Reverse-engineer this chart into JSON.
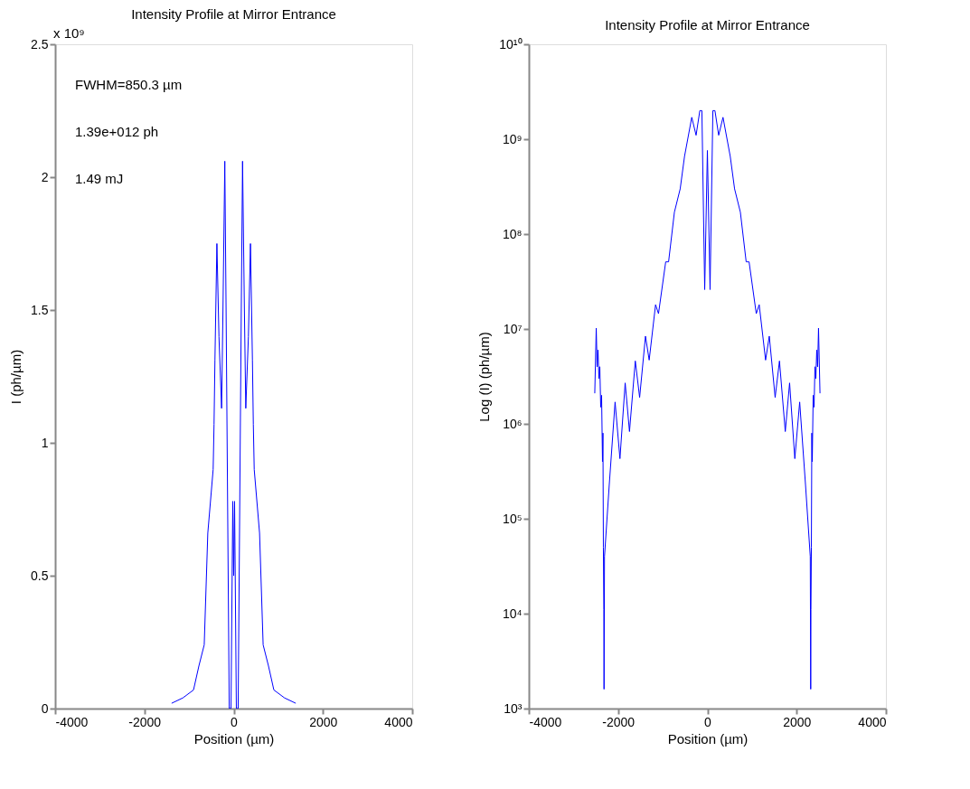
{
  "chart_data": [
    {
      "type": "line",
      "title": "Intensity Profile at Mirror Entrance",
      "xlabel": "Position (µm)",
      "ylabel": "I (ph/µm)",
      "xlim": [
        -4000,
        4000
      ],
      "xticks": [
        -4000,
        -2000,
        0,
        2000,
        4000
      ],
      "ylim": [
        0,
        2.5
      ],
      "yticks": [
        0,
        0.5,
        1,
        1.5,
        2,
        2.5
      ],
      "grid": false,
      "annotations": [
        "x 10⁹",
        "FWHM=850.3 µm",
        "1.39e+012 ph",
        "1.49 mJ"
      ],
      "series": [
        {
          "color": "#0000ff",
          "x": [
            -1390,
            -1140,
            -900,
            -780,
            -660,
            -580,
            -460,
            -440,
            -420,
            -376,
            -330,
            -271,
            -240,
            -199,
            -170,
            -100,
            -60,
            -20,
            0,
            20,
            60,
            100,
            170,
            199,
            240,
            271,
            330,
            376,
            420,
            440,
            460,
            580,
            660,
            780,
            900,
            1140,
            1390
          ],
          "values": [
            0.02,
            0.04,
            0.07,
            0.16,
            0.24,
            0.66,
            0.9,
            1.07,
            1.31,
            1.75,
            1.4,
            1.13,
            1.5,
            2.06,
            1.5,
            0,
            0,
            0.78,
            0.5,
            0.78,
            0,
            0,
            1.5,
            2.06,
            1.5,
            1.13,
            1.4,
            1.75,
            1.31,
            1.07,
            0.9,
            0.66,
            0.24,
            0.16,
            0.07,
            0.04,
            0.02
          ]
        }
      ]
    },
    {
      "type": "line",
      "title": "Intensity Profile at Mirror Entrance",
      "xlabel": "Position (µm)",
      "ylabel": "Log (I) (ph/µm)",
      "log": "y",
      "xlim": [
        -4000,
        4000
      ],
      "xticks": [
        -4000,
        -2000,
        0,
        2000,
        4000
      ],
      "ylim": [
        1000,
        10000000000
      ],
      "yticks": [
        {
          "value": 1000,
          "label": "10³"
        },
        {
          "value": 10000,
          "label": "10⁴"
        },
        {
          "value": 100000,
          "label": "10⁵"
        },
        {
          "value": 1000000,
          "label": "10⁶"
        },
        {
          "value": 10000000,
          "label": "10⁷"
        },
        {
          "value": 100000000,
          "label": "10⁸"
        },
        {
          "value": 1000000000,
          "label": "10⁹"
        },
        {
          "value": 10000000000,
          "label": "10¹⁰"
        }
      ],
      "grid": false,
      "series": [
        {
          "color": "#0000ff",
          "x": [
            -2523,
            -2490,
            -2470,
            -2450,
            -2430,
            -2410,
            -2390,
            -2370,
            -2350,
            -2340,
            -2330,
            -2320,
            -2315,
            -2305,
            -2198,
            -2068,
            -1959,
            -1842,
            -1745,
            -1615,
            -1518,
            -1387,
            -1304,
            -1161,
            -1095,
            -934,
            -869,
            -739,
            -609,
            -512,
            -350,
            -253,
            -169,
            -123,
            -60,
            0,
            60,
            123,
            169,
            253,
            350,
            512,
            609,
            739,
            869,
            934,
            1095,
            1161,
            1304,
            1387,
            1518,
            1615,
            1745,
            1842,
            1959,
            2068,
            2198,
            2305,
            2315,
            2320,
            2330,
            2340,
            2350,
            2370,
            2390,
            2410,
            2430,
            2450,
            2470,
            2490,
            2523
          ],
          "values": [
            2100000,
            10200000,
            4000000,
            6000000,
            3000000,
            4000000,
            1500000,
            2000000,
            400000,
            800000,
            50000,
            11000,
            1600,
            40000,
            230000,
            1700000,
            430000,
            2700000,
            830000,
            4600000,
            1900000,
            8400000,
            4700000,
            18000000,
            14500000,
            51000000,
            51000000,
            170000000,
            300000000,
            660000000,
            1700000000,
            1100000000,
            2000000000,
            2000000000,
            26000000,
            760000000,
            26000000,
            2000000000,
            2000000000,
            1100000000,
            1700000000,
            660000000,
            300000000,
            170000000,
            51000000,
            51000000,
            14500000,
            18000000,
            4700000,
            8400000,
            1900000,
            4600000,
            830000,
            2700000,
            430000,
            1700000,
            230000,
            40000,
            1600,
            11000,
            50000,
            800000,
            400000,
            2000000,
            1500000,
            4000000,
            3000000,
            6000000,
            4000000,
            10200000,
            2100000
          ]
        }
      ]
    }
  ]
}
